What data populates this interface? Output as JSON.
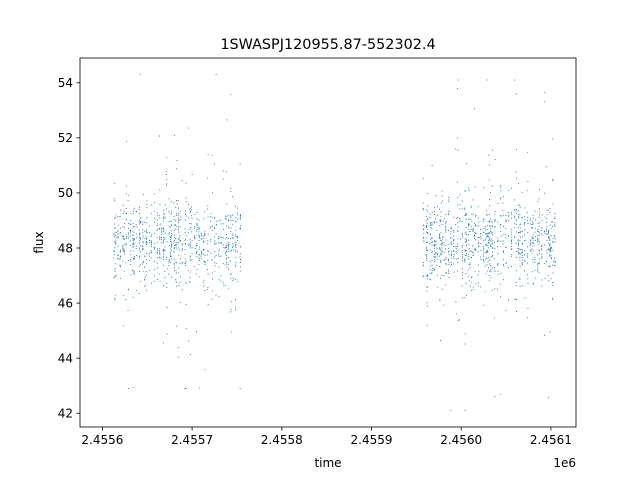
{
  "chart_data": {
    "type": "scatter",
    "title": "1SWASPJ120955.87-552302.4",
    "xlabel": "time",
    "ylabel": "flux",
    "x_offset_label": "1e6",
    "xlim": [
      2455575,
      2456128
    ],
    "ylim": [
      41.5,
      54.9
    ],
    "x_ticks": [
      2455600,
      2455700,
      2455800,
      2455900,
      2456000,
      2456100
    ],
    "x_tick_labels": [
      "2.4556",
      "2.4557",
      "2.4558",
      "2.4559",
      "2.4560",
      "2.4561"
    ],
    "y_ticks": [
      42,
      44,
      46,
      48,
      50,
      52,
      54
    ],
    "y_tick_labels": [
      "42",
      "44",
      "46",
      "48",
      "50",
      "52",
      "54"
    ],
    "grid": false,
    "legend": "none",
    "marker_color": "#1f77b4",
    "series": [
      {
        "segments": [
          {
            "x_start": 2455613,
            "x_end": 2455755,
            "median": 48.2,
            "spread": 0.75,
            "min": 42.9,
            "max": 54.3
          },
          {
            "x_start": 2455958,
            "x_end": 2456106,
            "median": 48.2,
            "spread": 0.75,
            "min": 42.1,
            "max": 54.1
          }
        ]
      }
    ]
  }
}
